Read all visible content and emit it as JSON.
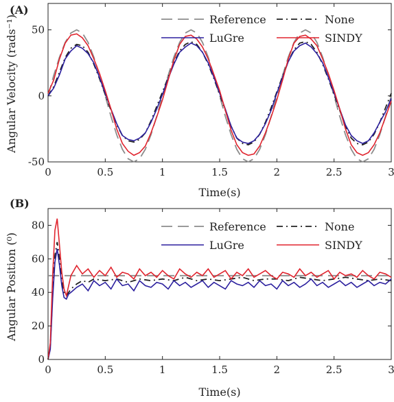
{
  "chart_data": [
    {
      "type": "line",
      "panel_label": "(A)",
      "xlabel": "Time(s)",
      "ylabel": "Angular Velocity (rads⁻¹)",
      "xlim": [
        0,
        3
      ],
      "ylim": [
        -50,
        70
      ],
      "xticks": [
        0,
        0.5,
        1,
        1.5,
        2,
        2.5,
        3
      ],
      "xtick_labels": [
        "0",
        "0.5",
        "1",
        "1.5",
        "2",
        "2.5",
        "3"
      ],
      "yticks": [
        -50,
        0,
        50
      ],
      "ytick_labels": [
        "-50",
        "0",
        "50"
      ],
      "grid": false,
      "legend": "top-right",
      "series": [
        {
          "name": "Reference",
          "style": "dashed",
          "color": "#8c8c8c",
          "x": [
            0,
            0.05,
            0.1,
            0.15,
            0.2,
            0.25,
            0.3,
            0.35,
            0.4,
            0.45,
            0.5,
            0.55,
            0.6,
            0.65,
            0.7,
            0.75,
            0.8,
            0.85,
            0.9,
            0.95,
            1,
            1.05,
            1.1,
            1.15,
            1.2,
            1.25,
            1.3,
            1.35,
            1.4,
            1.45,
            1.5,
            1.55,
            1.6,
            1.65,
            1.7,
            1.75,
            1.8,
            1.85,
            1.9,
            1.95,
            2,
            2.05,
            2.1,
            2.15,
            2.2,
            2.25,
            2.3,
            2.35,
            2.4,
            2.45,
            2.5,
            2.55,
            2.6,
            2.65,
            2.7,
            2.75,
            2.8,
            2.85,
            2.9,
            2.95,
            3
          ],
          "y": [
            0,
            15.5,
            29.4,
            40.5,
            47.6,
            50,
            47.6,
            40.5,
            29.4,
            15.5,
            0,
            -15.5,
            -29.4,
            -40.5,
            -47.6,
            -50,
            -47.6,
            -40.5,
            -29.4,
            -15.5,
            0,
            15.5,
            29.4,
            40.5,
            47.6,
            50,
            47.6,
            40.5,
            29.4,
            15.5,
            0,
            -15.5,
            -29.4,
            -40.5,
            -47.6,
            -50,
            -47.6,
            -40.5,
            -29.4,
            -15.5,
            0,
            15.5,
            29.4,
            40.5,
            47.6,
            50,
            47.6,
            40.5,
            29.4,
            15.5,
            0,
            -15.5,
            -29.4,
            -40.5,
            -47.6,
            -50,
            -47.6,
            -40.5,
            -29.4,
            -15.5,
            0
          ]
        },
        {
          "name": "None",
          "style": "dashdot",
          "color": "#222222",
          "x": [
            0,
            0.05,
            0.1,
            0.15,
            0.2,
            0.25,
            0.3,
            0.35,
            0.4,
            0.45,
            0.5,
            0.55,
            0.6,
            0.65,
            0.7,
            0.75,
            0.8,
            0.85,
            0.9,
            0.95,
            1,
            1.05,
            1.1,
            1.15,
            1.2,
            1.25,
            1.3,
            1.35,
            1.4,
            1.45,
            1.5,
            1.55,
            1.6,
            1.65,
            1.7,
            1.75,
            1.8,
            1.85,
            1.9,
            1.95,
            2,
            2.05,
            2.1,
            2.15,
            2.2,
            2.25,
            2.3,
            2.35,
            2.4,
            2.45,
            2.5,
            2.55,
            2.6,
            2.65,
            2.7,
            2.75,
            2.8,
            2.85,
            2.9,
            2.95,
            3
          ],
          "y": [
            0,
            7,
            18,
            29,
            36,
            39,
            38,
            33,
            24,
            13,
            1,
            -11,
            -22,
            -30,
            -34,
            -35,
            -33,
            -28,
            -19,
            -8,
            3,
            14,
            25,
            34,
            39,
            41,
            39,
            33,
            24,
            13,
            1,
            -11,
            -23,
            -32,
            -36,
            -37,
            -35,
            -29,
            -20,
            -9,
            3,
            15,
            26,
            35,
            40,
            41,
            39,
            33,
            24,
            13,
            1,
            -11,
            -23,
            -32,
            -36,
            -37,
            -35,
            -29,
            -20,
            -9,
            2
          ]
        },
        {
          "name": "LuGre",
          "style": "solid",
          "color": "#2b1f9e",
          "x": [
            0,
            0.05,
            0.1,
            0.15,
            0.2,
            0.25,
            0.3,
            0.35,
            0.4,
            0.45,
            0.5,
            0.55,
            0.6,
            0.65,
            0.7,
            0.75,
            0.8,
            0.85,
            0.9,
            0.95,
            1,
            1.05,
            1.1,
            1.15,
            1.2,
            1.25,
            1.3,
            1.35,
            1.4,
            1.45,
            1.5,
            1.55,
            1.6,
            1.65,
            1.7,
            1.75,
            1.8,
            1.85,
            1.9,
            1.95,
            2,
            2.05,
            2.1,
            2.15,
            2.2,
            2.25,
            2.3,
            2.35,
            2.4,
            2.45,
            2.5,
            2.55,
            2.6,
            2.65,
            2.7,
            2.75,
            2.8,
            2.85,
            2.9,
            2.95,
            3
          ],
          "y": [
            0,
            6,
            16,
            28,
            34,
            38,
            36,
            32,
            25,
            14,
            2,
            -10,
            -21,
            -30,
            -33,
            -34,
            -32,
            -28,
            -20,
            -10,
            1,
            13,
            24,
            33,
            37,
            40,
            38,
            33,
            25,
            14,
            2,
            -10,
            -23,
            -32,
            -35,
            -36,
            -34,
            -29,
            -21,
            -11,
            2,
            14,
            26,
            34,
            38,
            40,
            37,
            32,
            25,
            14,
            2,
            -10,
            -22,
            -30,
            -34,
            -36,
            -34,
            -28,
            -20,
            -12,
            -2
          ]
        },
        {
          "name": "SINDY",
          "style": "solid",
          "color": "#e0242e",
          "x": [
            0,
            0.05,
            0.1,
            0.15,
            0.2,
            0.25,
            0.3,
            0.35,
            0.4,
            0.45,
            0.5,
            0.55,
            0.6,
            0.65,
            0.7,
            0.75,
            0.8,
            0.85,
            0.9,
            0.95,
            1,
            1.05,
            1.1,
            1.15,
            1.2,
            1.25,
            1.3,
            1.35,
            1.4,
            1.45,
            1.5,
            1.55,
            1.6,
            1.65,
            1.7,
            1.75,
            1.8,
            1.85,
            1.9,
            1.95,
            2,
            2.05,
            2.1,
            2.15,
            2.2,
            2.25,
            2.3,
            2.35,
            2.4,
            2.45,
            2.5,
            2.55,
            2.6,
            2.65,
            2.7,
            2.75,
            2.8,
            2.85,
            2.9,
            2.95,
            3
          ],
          "y": [
            2,
            12,
            28,
            40,
            46,
            47,
            44,
            38,
            28,
            17,
            4,
            -10,
            -25,
            -36,
            -42,
            -45,
            -43,
            -38,
            -28,
            -16,
            -3,
            12,
            27,
            39,
            45,
            46,
            43,
            37,
            28,
            16,
            4,
            -11,
            -26,
            -37,
            -43,
            -45,
            -44,
            -38,
            -28,
            -16,
            -3,
            12,
            28,
            40,
            45,
            46,
            43,
            38,
            28,
            17,
            4,
            -10,
            -25,
            -37,
            -43,
            -45,
            -43,
            -37,
            -28,
            -16,
            -4
          ]
        }
      ]
    },
    {
      "type": "line",
      "panel_label": "(B)",
      "xlabel": "Time(s)",
      "ylabel": "Angular Position (⁰)",
      "xlim": [
        0,
        3
      ],
      "ylim": [
        0,
        90
      ],
      "xticks": [
        0,
        0.5,
        1,
        1.5,
        2,
        2.5,
        3
      ],
      "xtick_labels": [
        "0",
        "0.5",
        "1",
        "1.5",
        "2",
        "2.5",
        "3"
      ],
      "yticks": [
        0,
        20,
        40,
        60,
        80
      ],
      "ytick_labels": [
        "0",
        "20",
        "40",
        "60",
        "80"
      ],
      "grid": false,
      "legend": "top-right",
      "series": [
        {
          "name": "Reference",
          "style": "dashed",
          "color": "#8c8c8c",
          "x": [
            0,
            3
          ],
          "y": [
            50,
            50
          ]
        },
        {
          "name": "None",
          "style": "dashdot",
          "color": "#222222",
          "x": [
            0,
            0.02,
            0.04,
            0.06,
            0.08,
            0.1,
            0.12,
            0.14,
            0.16,
            0.18,
            0.2,
            0.25,
            0.3,
            0.35,
            0.4,
            0.5,
            0.6,
            0.7,
            0.8,
            0.9,
            1,
            1.1,
            1.2,
            1.3,
            1.4,
            1.5,
            1.6,
            1.7,
            1.8,
            1.9,
            2,
            2.1,
            2.2,
            2.3,
            2.4,
            2.5,
            2.6,
            2.7,
            2.8,
            2.9,
            3
          ],
          "y": [
            0,
            8,
            40,
            62,
            70,
            60,
            48,
            40,
            38,
            40,
            42,
            45,
            47,
            46,
            48,
            47,
            48,
            46,
            48,
            47,
            48,
            47,
            49,
            47,
            48,
            47,
            48,
            49,
            47,
            48,
            48,
            47,
            49,
            48,
            47,
            48,
            49,
            48,
            47,
            48,
            47
          ]
        },
        {
          "name": "LuGre",
          "style": "solid",
          "color": "#2b1f9e",
          "x": [
            0,
            0.02,
            0.04,
            0.06,
            0.08,
            0.1,
            0.12,
            0.14,
            0.16,
            0.18,
            0.2,
            0.25,
            0.3,
            0.35,
            0.4,
            0.45,
            0.5,
            0.55,
            0.6,
            0.65,
            0.7,
            0.75,
            0.8,
            0.85,
            0.9,
            0.95,
            1,
            1.05,
            1.1,
            1.15,
            1.2,
            1.25,
            1.3,
            1.35,
            1.4,
            1.45,
            1.5,
            1.55,
            1.6,
            1.65,
            1.7,
            1.75,
            1.8,
            1.85,
            1.9,
            1.95,
            2,
            2.05,
            2.1,
            2.15,
            2.2,
            2.25,
            2.3,
            2.35,
            2.4,
            2.45,
            2.5,
            2.55,
            2.6,
            2.65,
            2.7,
            2.75,
            2.8,
            2.85,
            2.9,
            2.95,
            3
          ],
          "y": [
            0,
            6,
            36,
            58,
            66,
            56,
            44,
            37,
            36,
            39,
            40,
            43,
            45,
            41,
            47,
            44,
            46,
            42,
            48,
            44,
            45,
            41,
            47,
            44,
            43,
            46,
            45,
            42,
            47,
            44,
            46,
            43,
            45,
            47,
            43,
            46,
            44,
            42,
            47,
            45,
            44,
            46,
            43,
            47,
            44,
            45,
            42,
            47,
            44,
            46,
            43,
            45,
            48,
            44,
            46,
            43,
            45,
            47,
            44,
            46,
            43,
            45,
            47,
            44,
            46,
            45,
            48
          ]
        },
        {
          "name": "SINDY",
          "style": "solid",
          "color": "#e0242e",
          "x": [
            0,
            0.02,
            0.04,
            0.06,
            0.08,
            0.1,
            0.12,
            0.14,
            0.16,
            0.18,
            0.2,
            0.25,
            0.3,
            0.35,
            0.4,
            0.45,
            0.5,
            0.55,
            0.6,
            0.65,
            0.7,
            0.75,
            0.8,
            0.85,
            0.9,
            0.95,
            1,
            1.05,
            1.1,
            1.15,
            1.2,
            1.25,
            1.3,
            1.35,
            1.4,
            1.45,
            1.5,
            1.55,
            1.6,
            1.65,
            1.7,
            1.75,
            1.8,
            1.85,
            1.9,
            1.95,
            2,
            2.05,
            2.1,
            2.15,
            2.2,
            2.25,
            2.3,
            2.35,
            2.4,
            2.45,
            2.5,
            2.55,
            2.6,
            2.65,
            2.7,
            2.75,
            2.8,
            2.85,
            2.9,
            2.95,
            3
          ],
          "y": [
            0,
            10,
            50,
            77,
            84,
            68,
            52,
            42,
            38,
            44,
            50,
            56,
            51,
            54,
            49,
            53,
            50,
            55,
            49,
            52,
            51,
            48,
            54,
            50,
            52,
            49,
            53,
            50,
            48,
            54,
            51,
            49,
            52,
            50,
            54,
            49,
            51,
            53,
            48,
            52,
            50,
            54,
            49,
            51,
            53,
            50,
            48,
            52,
            51,
            49,
            54,
            50,
            52,
            49,
            51,
            53,
            48,
            52,
            50,
            51,
            49,
            53,
            50,
            48,
            52,
            51,
            49
          ]
        }
      ]
    }
  ]
}
